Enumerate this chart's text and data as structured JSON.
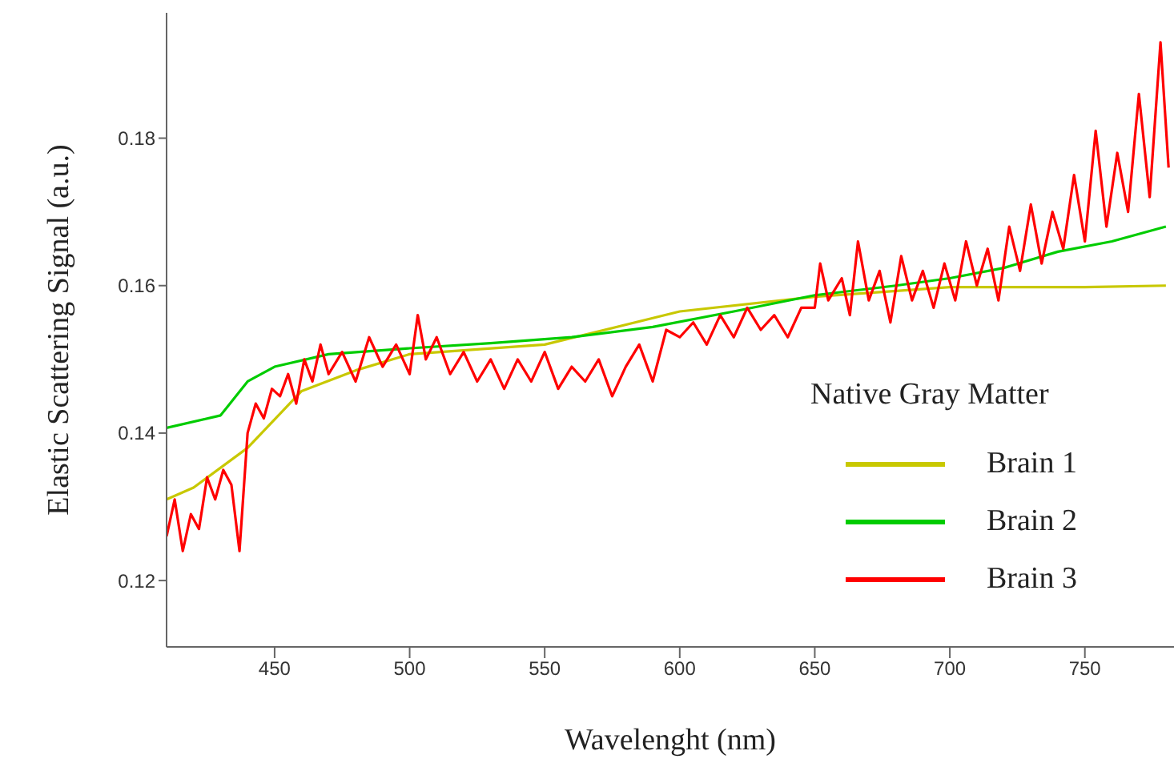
{
  "chart_data": {
    "type": "line",
    "xlabel": "Wavelenght (nm)",
    "ylabel": "Elastic Scattering Signal (a.u.)",
    "legend_title": "Native Gray Matter",
    "legend": "right",
    "grid": false,
    "marker": "none",
    "line_style": "solid",
    "xlim": [
      410,
      783
    ],
    "xticks": [
      450,
      500,
      550,
      600,
      650,
      700,
      750
    ],
    "ylim": [
      0.111,
      0.197
    ],
    "yticks": [
      0.12,
      0.14,
      0.16,
      0.18
    ],
    "series": [
      {
        "name": "Brain 1",
        "color": "#c8c800",
        "x": [
          410,
          420,
          440,
          460,
          480,
          500,
          550,
          600,
          650,
          700,
          750,
          780
        ],
        "values": [
          0.131,
          0.1326,
          0.138,
          0.1457,
          0.1485,
          0.1507,
          0.152,
          0.1565,
          0.1585,
          0.1598,
          0.1598,
          0.16
        ]
      },
      {
        "name": "Brain 2",
        "color": "#00cc00",
        "x": [
          410,
          430,
          440,
          450,
          470,
          500,
          530,
          560,
          590,
          620,
          650,
          680,
          700,
          720,
          740,
          760,
          780
        ],
        "values": [
          0.1407,
          0.1424,
          0.147,
          0.149,
          0.1507,
          0.1515,
          0.1522,
          0.153,
          0.1544,
          0.1565,
          0.1587,
          0.16,
          0.161,
          0.1624,
          0.1646,
          0.166,
          0.168
        ]
      },
      {
        "name": "Brain 3",
        "color": "#ff0000",
        "x": [
          410,
          413,
          416,
          419,
          422,
          425,
          428,
          431,
          434,
          437,
          440,
          443,
          446,
          449,
          452,
          455,
          458,
          461,
          464,
          467,
          470,
          475,
          480,
          485,
          490,
          495,
          500,
          503,
          506,
          510,
          515,
          520,
          525,
          530,
          535,
          540,
          545,
          550,
          555,
          560,
          565,
          570,
          575,
          580,
          585,
          590,
          595,
          600,
          605,
          610,
          615,
          620,
          625,
          630,
          635,
          640,
          645,
          650,
          652,
          655,
          660,
          663,
          666,
          670,
          674,
          678,
          682,
          686,
          690,
          694,
          698,
          702,
          706,
          710,
          714,
          718,
          722,
          726,
          730,
          734,
          738,
          742,
          746,
          750,
          754,
          758,
          762,
          766,
          770,
          774,
          778,
          781
        ],
        "values": [
          0.126,
          0.131,
          0.124,
          0.129,
          0.127,
          0.134,
          0.131,
          0.135,
          0.133,
          0.124,
          0.14,
          0.144,
          0.142,
          0.146,
          0.145,
          0.148,
          0.144,
          0.15,
          0.147,
          0.152,
          0.148,
          0.151,
          0.147,
          0.153,
          0.149,
          0.152,
          0.148,
          0.156,
          0.15,
          0.153,
          0.148,
          0.151,
          0.147,
          0.15,
          0.146,
          0.15,
          0.147,
          0.151,
          0.146,
          0.149,
          0.147,
          0.15,
          0.145,
          0.149,
          0.152,
          0.147,
          0.154,
          0.153,
          0.155,
          0.152,
          0.156,
          0.153,
          0.157,
          0.154,
          0.156,
          0.153,
          0.157,
          0.157,
          0.163,
          0.158,
          0.161,
          0.156,
          0.166,
          0.158,
          0.162,
          0.155,
          0.164,
          0.158,
          0.162,
          0.157,
          0.163,
          0.158,
          0.166,
          0.16,
          0.165,
          0.158,
          0.168,
          0.162,
          0.171,
          0.163,
          0.17,
          0.165,
          0.175,
          0.166,
          0.181,
          0.168,
          0.178,
          0.17,
          0.186,
          0.172,
          0.193,
          0.176
        ]
      }
    ]
  }
}
